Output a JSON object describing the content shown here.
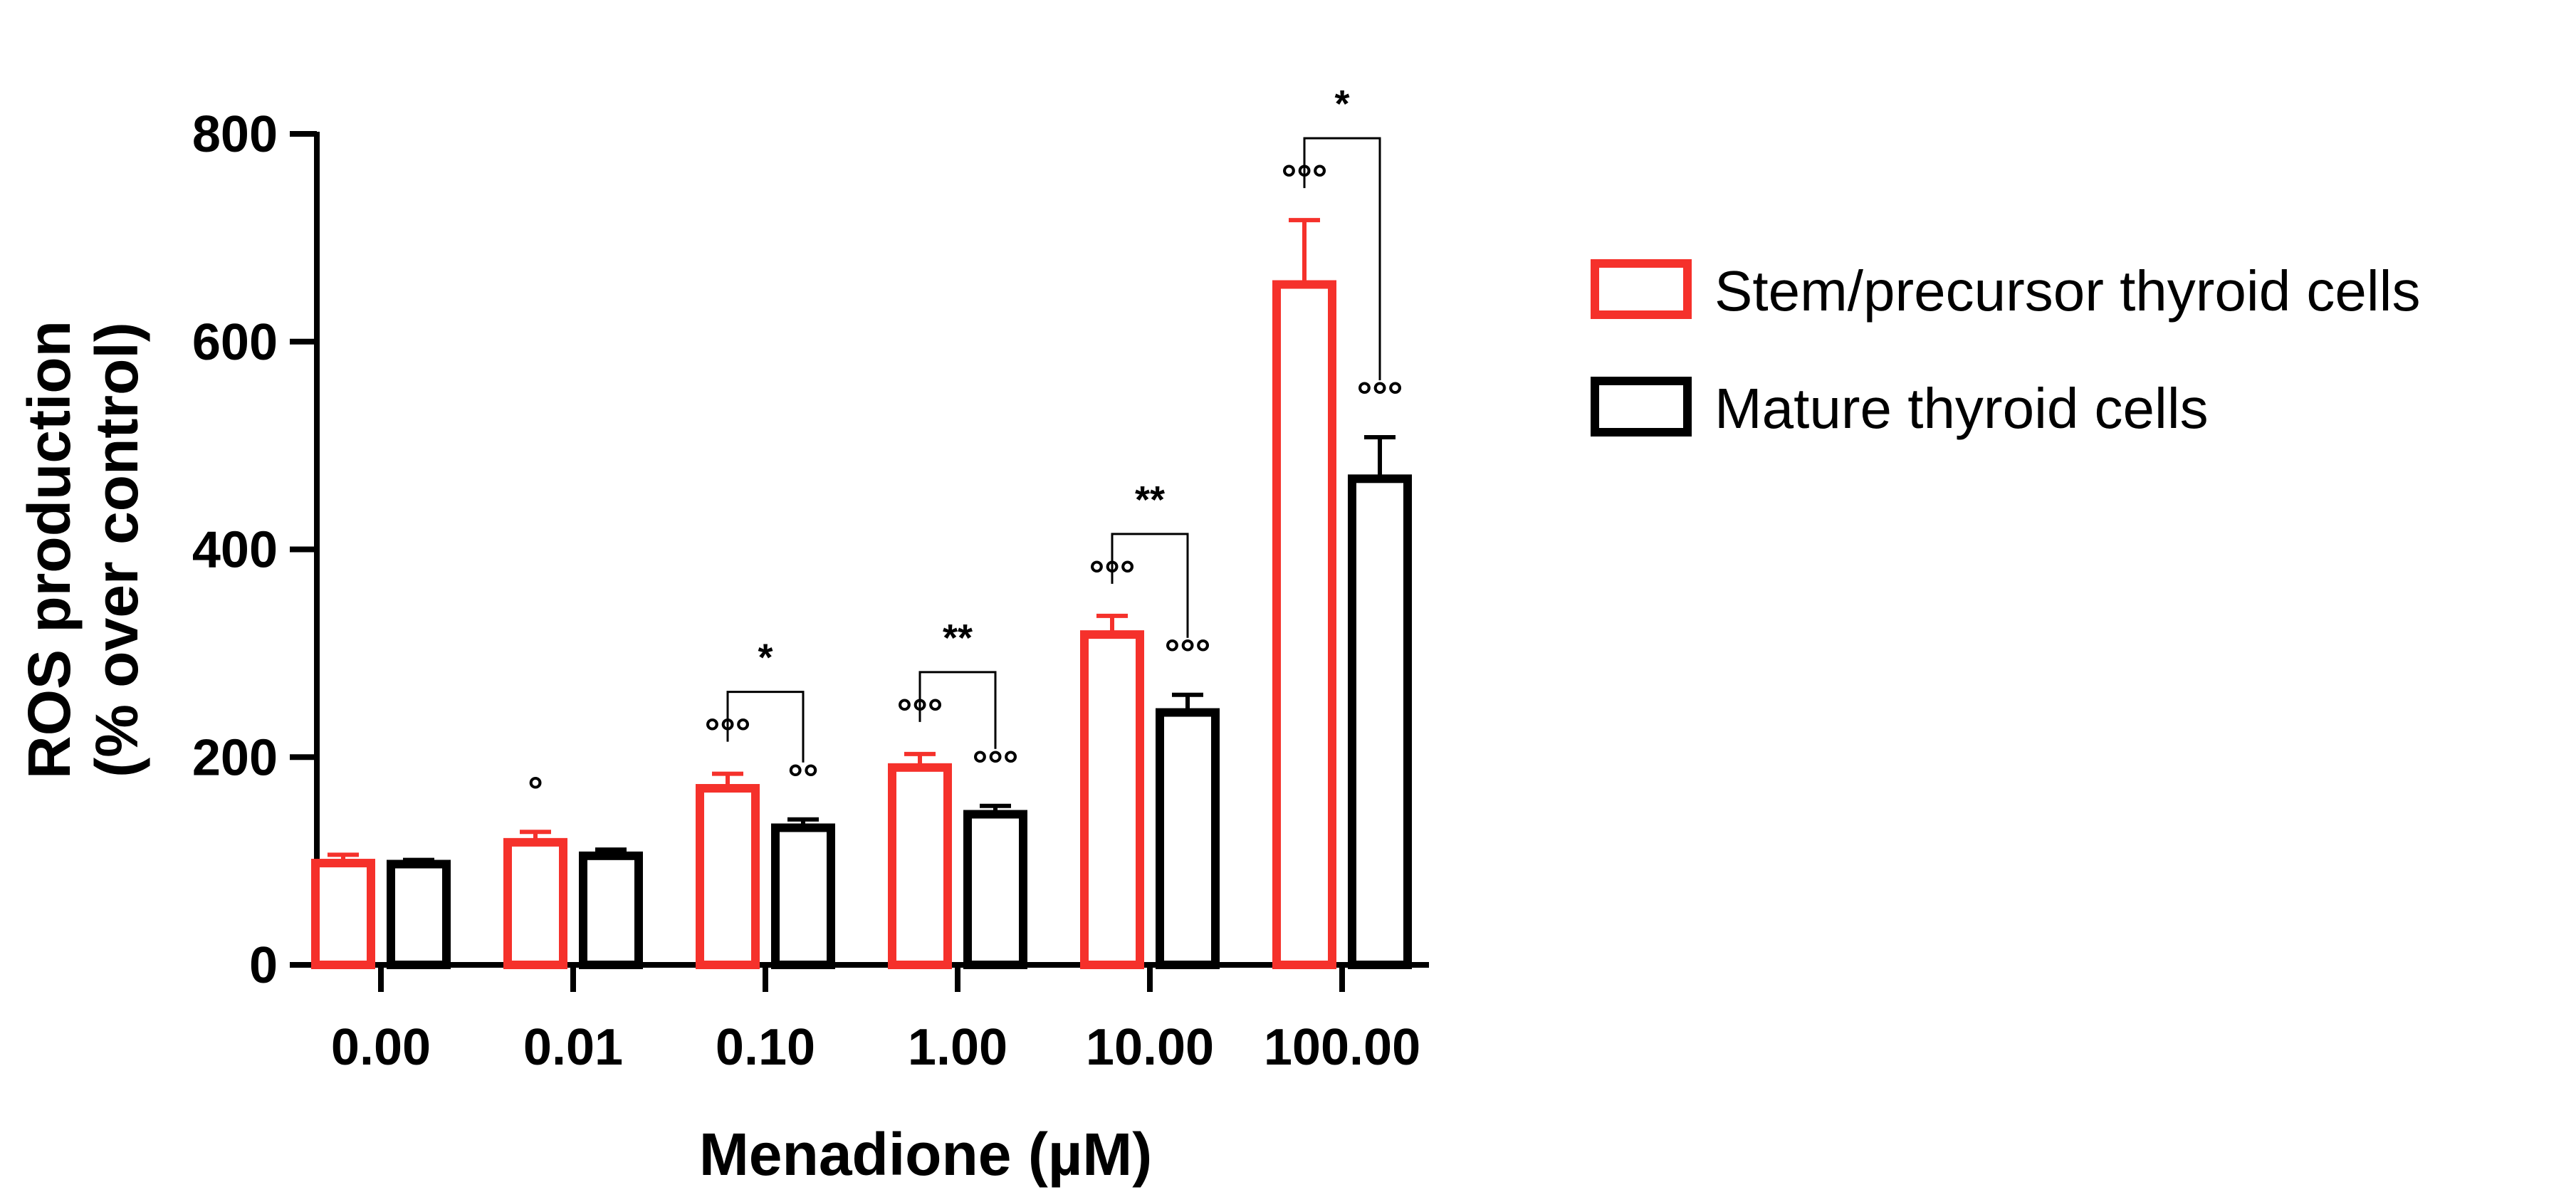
{
  "chart_data": {
    "type": "bar",
    "categories": [
      "0.00",
      "0.01",
      "0.10",
      "1.00",
      "10.00",
      "100.00"
    ],
    "series": [
      {
        "name": "Stem/precursor thyroid cells",
        "color": "#f5312b",
        "values": [
          98,
          118,
          170,
          190,
          318,
          655
        ],
        "errors": [
          8,
          10,
          14,
          13,
          18,
          62
        ],
        "marks": [
          "",
          "°",
          "°°°",
          "°°°",
          "°°°",
          "°°°"
        ]
      },
      {
        "name": "Mature thyroid cells",
        "color": "#000000",
        "values": [
          97,
          105,
          132,
          145,
          243,
          468
        ],
        "errors": [
          4,
          6,
          8,
          8,
          17,
          40
        ],
        "marks": [
          "",
          "",
          "°°",
          "°°°",
          "°°°",
          "°°°"
        ]
      }
    ],
    "comparisons": [
      {
        "category": "0.10",
        "label": "*"
      },
      {
        "category": "1.00",
        "label": "**"
      },
      {
        "category": "10.00",
        "label": "**"
      },
      {
        "category": "100.00",
        "label": "*"
      }
    ],
    "title": "",
    "xlabel": "Menadione (µM)",
    "ylabel_lines": [
      "ROS production",
      "(% over control)"
    ],
    "ylim": [
      0,
      800
    ],
    "yticks": [
      0,
      200,
      400,
      600,
      800
    ],
    "grid": false,
    "legend_position": "right"
  }
}
